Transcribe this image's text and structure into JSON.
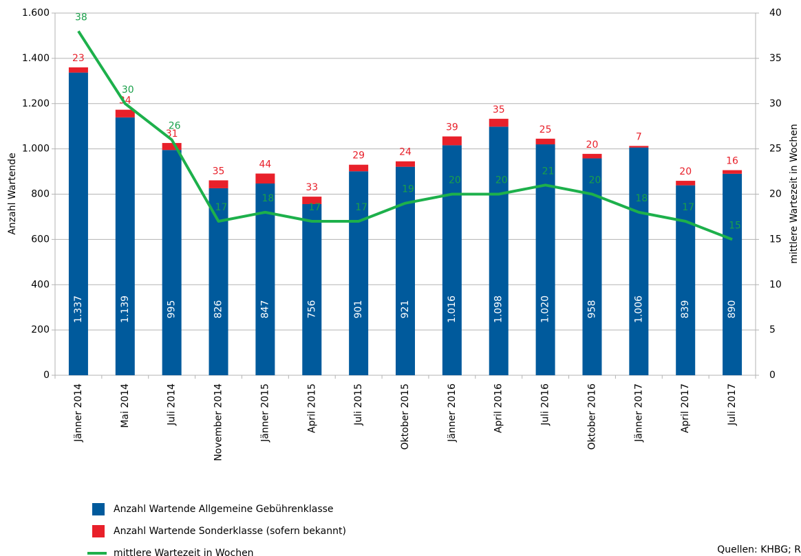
{
  "chart_data": {
    "type": "bar_line",
    "categories": [
      "Jänner 2014",
      "Mai 2014",
      "Juli 2014",
      "November 2014",
      "Jänner 2015",
      "April 2015",
      "Juli 2015",
      "Oktober 2015",
      "Jänner 2016",
      "April 2016",
      "Juli 2016",
      "Oktober 2016",
      "Jänner 2017",
      "April 2017",
      "Juli 2017"
    ],
    "series": [
      {
        "name": "Anzahl Wartende Allgemeine Gebührenklasse",
        "color": "#005a9c",
        "kind": "bar",
        "values": [
          1337,
          1139,
          995,
          826,
          847,
          756,
          901,
          921,
          1016,
          1098,
          1020,
          958,
          1006,
          839,
          890
        ],
        "value_labels": [
          "1.337",
          "1.139",
          "995",
          "826",
          "847",
          "756",
          "901",
          "921",
          "1.016",
          "1.098",
          "1.020",
          "958",
          "1.006",
          "839",
          "890"
        ]
      },
      {
        "name": "Anzahl Wartende Sonderklasse (sofern bekannt)",
        "color": "#e8202a",
        "kind": "bar",
        "values": [
          23,
          34,
          31,
          35,
          44,
          33,
          29,
          24,
          39,
          35,
          25,
          20,
          7,
          20,
          16
        ]
      },
      {
        "name": "mittlere Wartezeit in Wochen",
        "color": "#1db04b",
        "kind": "line",
        "axis": "y2",
        "values": [
          38,
          30,
          26,
          17,
          18,
          17,
          17,
          19,
          20,
          20,
          21,
          20,
          18,
          17,
          15
        ]
      }
    ],
    "ylabel": "Anzahl Wartende",
    "y2label": "mittlere Wartezeit in Wochen",
    "ylim": [
      0,
      1600
    ],
    "yticks": [
      0,
      200,
      400,
      600,
      800,
      {
        "value": 1000,
        "label": "1.000"
      },
      {
        "value": 1200,
        "label": "1.200"
      },
      {
        "value": 1400,
        "label": "1.400"
      },
      {
        "value": 1600,
        "label": "1.600"
      }
    ],
    "y2lim": [
      0,
      40
    ],
    "y2ticks": [
      0,
      5,
      10,
      15,
      20,
      25,
      30,
      35,
      40
    ],
    "grid": true,
    "source": "Quellen: KHBG; R"
  }
}
